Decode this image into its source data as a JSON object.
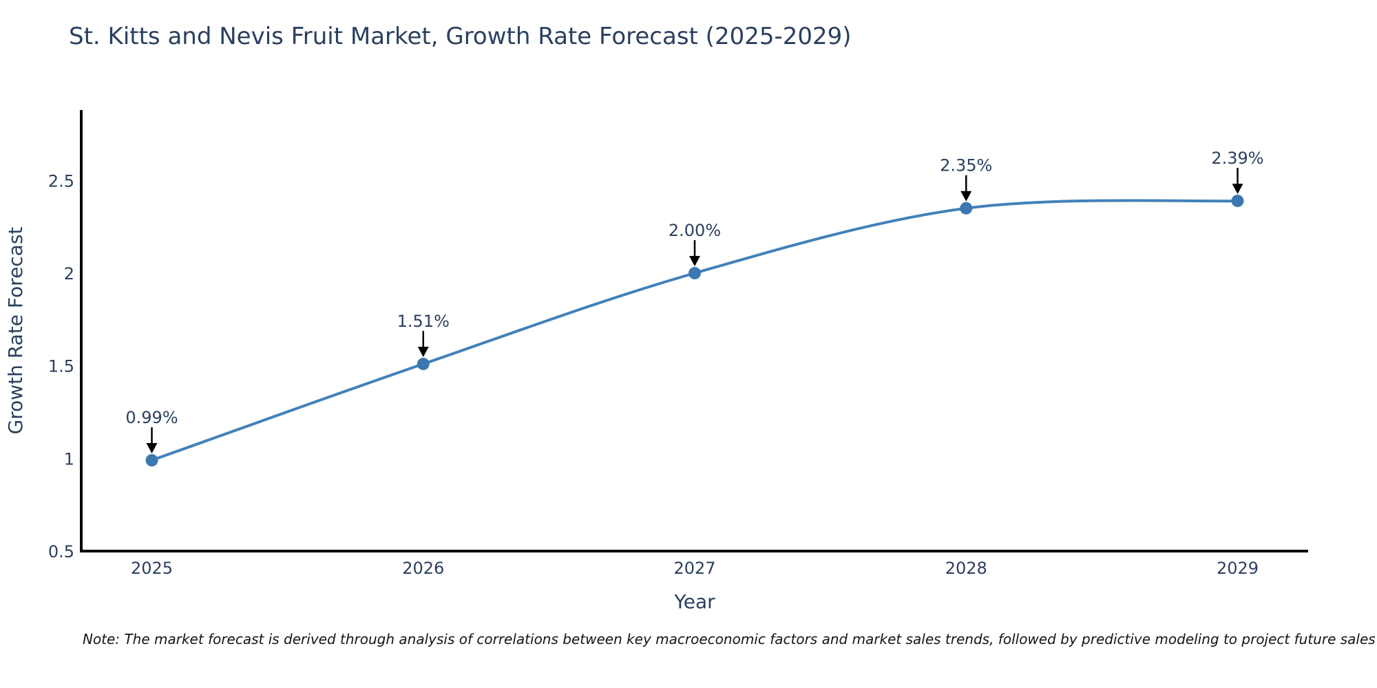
{
  "chart_data": {
    "type": "line",
    "curve": "spline",
    "title": "St. Kitts and Nevis Fruit Market, Growth Rate Forecast (2025-2029)",
    "xlabel": "Year",
    "ylabel": "Growth Rate Forecast",
    "x": [
      2025,
      2026,
      2027,
      2028,
      2029
    ],
    "values": [
      0.99,
      1.51,
      2.0,
      2.35,
      2.39
    ],
    "point_labels": [
      "0.99%",
      "1.51%",
      "2.00%",
      "2.35%",
      "2.39%"
    ],
    "xticks": [
      2025,
      2026,
      2027,
      2028,
      2029
    ],
    "xtick_labels": [
      "2025",
      "2026",
      "2027",
      "2028",
      "2029"
    ],
    "yticks": [
      0.5,
      1,
      1.5,
      2,
      2.5
    ],
    "ytick_labels": [
      "0.5",
      "1",
      "1.5",
      "2",
      "2.5"
    ],
    "xlim": [
      2024.74,
      2029.26
    ],
    "ylim": [
      0.5,
      2.88
    ],
    "grid": false,
    "legend": "none",
    "line_color": "#4181b8",
    "marker_color": "#3c78b0",
    "axis_color": "#000000",
    "text_color": "#2a3f5f",
    "annotation_arrow_color": "#000000"
  },
  "note": "Note: The market forecast is derived through analysis of correlations between key macroeconomic factors and market sales trends, followed by predictive modeling to project future sales"
}
